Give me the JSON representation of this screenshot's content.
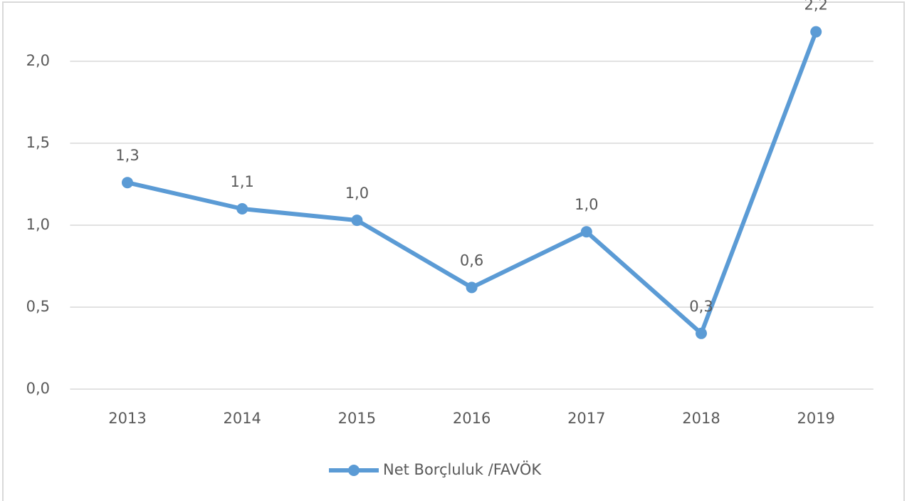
{
  "chart_data": {
    "type": "line",
    "categories": [
      "2013",
      "2014",
      "2015",
      "2016",
      "2017",
      "2018",
      "2019"
    ],
    "series": [
      {
        "name": "Net Borçluluk /FAVÖK",
        "color": "#5b9bd5",
        "values": [
          1.26,
          1.1,
          1.03,
          0.62,
          0.96,
          0.34,
          2.18
        ],
        "value_labels": [
          "1,3",
          "1,1",
          "1,0",
          "0,6",
          "1,0",
          "0,3",
          "2,2"
        ]
      }
    ],
    "ylim": [
      0,
      2.2
    ],
    "yticks": [
      {
        "value": 0,
        "label": "0,0"
      },
      {
        "value": 0.5,
        "label": "0,5"
      },
      {
        "value": 1,
        "label": "1,0"
      },
      {
        "value": 1.5,
        "label": "1,5"
      },
      {
        "value": 2,
        "label": "2,0"
      }
    ],
    "grid": true,
    "legend": "bottom"
  }
}
